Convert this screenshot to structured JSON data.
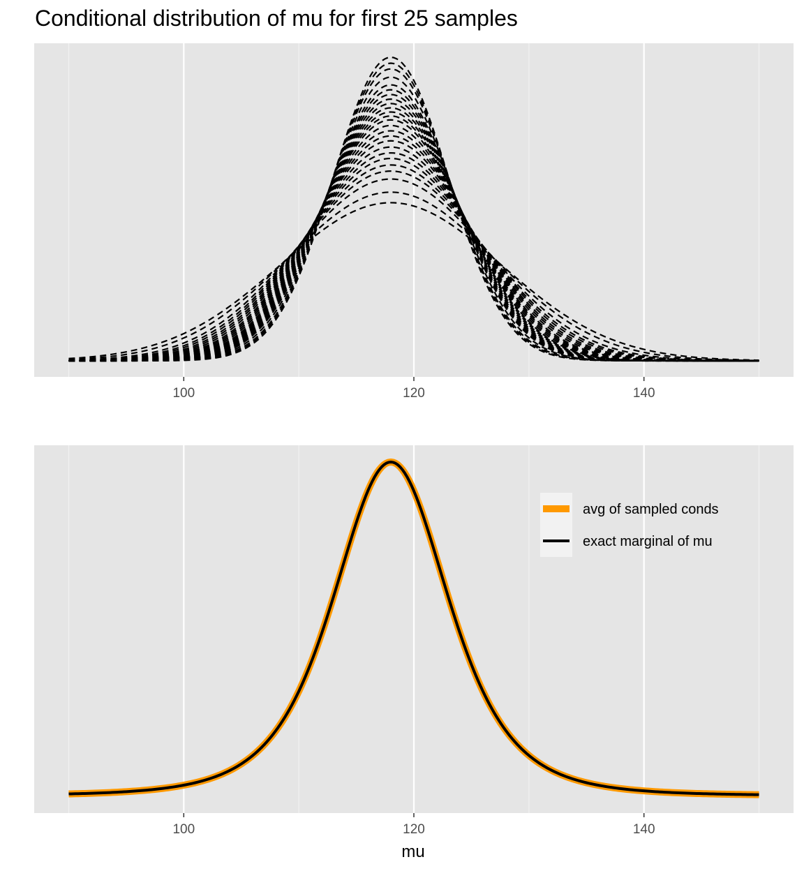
{
  "chart_data": [
    {
      "type": "line",
      "title": "Conditional distribution of mu for first 25 samples",
      "xlabel": "",
      "ylabel": "",
      "xlim": [
        87,
        153
      ],
      "x_ticks": [
        100,
        120,
        140
      ],
      "grid": true,
      "legend": "none",
      "line_style": "dashed",
      "line_color": "#000000",
      "series_description_x_range": [
        90,
        150
      ],
      "series": [
        {
          "mean": 118,
          "sd": 5.0
        },
        {
          "mean": 118,
          "sd": 5.1
        },
        {
          "mean": 118,
          "sd": 5.2
        },
        {
          "mean": 118,
          "sd": 5.35
        },
        {
          "mean": 118,
          "sd": 5.5
        },
        {
          "mean": 118,
          "sd": 5.6
        },
        {
          "mean": 118,
          "sd": 5.7
        },
        {
          "mean": 118,
          "sd": 5.8
        },
        {
          "mean": 118,
          "sd": 5.9
        },
        {
          "mean": 118,
          "sd": 6.0
        },
        {
          "mean": 118,
          "sd": 6.1
        },
        {
          "mean": 118,
          "sd": 6.2
        },
        {
          "mean": 118,
          "sd": 6.3
        },
        {
          "mean": 118,
          "sd": 6.45
        },
        {
          "mean": 118,
          "sd": 6.6
        },
        {
          "mean": 118,
          "sd": 6.75
        },
        {
          "mean": 118,
          "sd": 6.9
        },
        {
          "mean": 118,
          "sd": 7.1
        },
        {
          "mean": 118,
          "sd": 7.3
        },
        {
          "mean": 118,
          "sd": 7.5
        },
        {
          "mean": 118,
          "sd": 7.75
        },
        {
          "mean": 118,
          "sd": 8.0
        },
        {
          "mean": 118,
          "sd": 8.35
        },
        {
          "mean": 118,
          "sd": 9.0
        },
        {
          "mean": 118,
          "sd": 9.6
        }
      ]
    },
    {
      "type": "line",
      "title": "",
      "xlabel": "mu",
      "ylabel": "",
      "xlim": [
        87,
        153
      ],
      "x_ticks": [
        100,
        120,
        140
      ],
      "grid": true,
      "legend": "top-right",
      "series": [
        {
          "name": "avg of sampled conds",
          "color": "#FF9900",
          "x_range": [
            90,
            150
          ],
          "mean": 118,
          "scale": 5.2,
          "df": 4
        },
        {
          "name": "exact marginal of mu",
          "color": "#000000",
          "x_range": [
            90,
            150
          ],
          "mean": 118,
          "scale": 5.2,
          "df": 4
        }
      ]
    }
  ]
}
